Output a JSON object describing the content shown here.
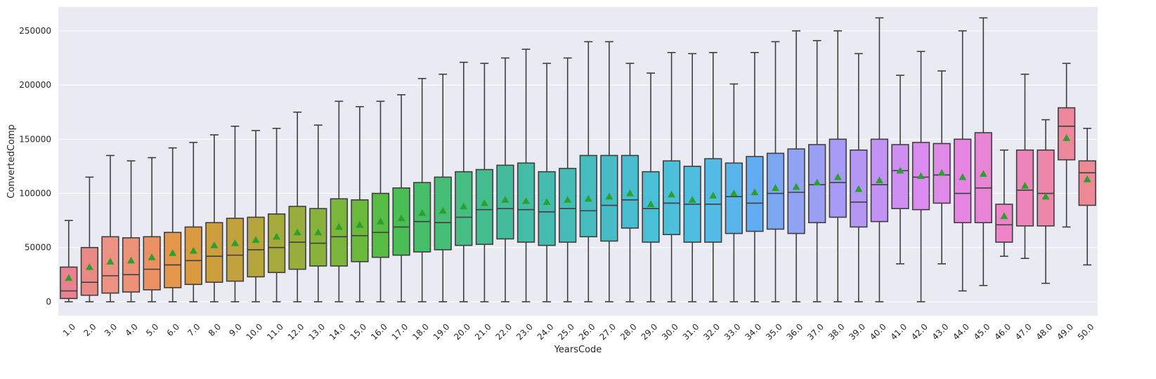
{
  "chart_data": {
    "type": "box",
    "xlabel": "YearsCode",
    "ylabel": "ConvertedComp",
    "ylim": [
      -13000,
      272000
    ],
    "yticks": [
      0,
      50000,
      100000,
      150000,
      200000,
      250000
    ],
    "ytick_labels": [
      "0",
      "50000",
      "100000",
      "150000",
      "200000",
      "250000"
    ],
    "grid": true,
    "background": "#eaeaf2",
    "box_edge_color": "#3f3f3f",
    "mean_marker_color": "#2ca02c",
    "categories": [
      "1.0",
      "2.0",
      "3.0",
      "4.0",
      "5.0",
      "6.0",
      "7.0",
      "8.0",
      "9.0",
      "10.0",
      "11.0",
      "12.0",
      "13.0",
      "14.0",
      "15.0",
      "16.0",
      "17.0",
      "18.0",
      "19.0",
      "20.0",
      "21.0",
      "22.0",
      "23.0",
      "24.0",
      "25.0",
      "26.0",
      "27.0",
      "28.0",
      "29.0",
      "30.0",
      "31.0",
      "32.0",
      "33.0",
      "34.0",
      "35.0",
      "36.0",
      "37.0",
      "38.0",
      "39.0",
      "40.0",
      "41.0",
      "42.0",
      "43.0",
      "44.0",
      "45.0",
      "46.0",
      "47.0",
      "48.0",
      "49.0",
      "50.0"
    ],
    "colors": [
      "#e8828e",
      "#ea8a86",
      "#ec9184",
      "#ed9179",
      "#ec9163",
      "#e4964b",
      "#dc9a40",
      "#cd9e3e",
      "#c2a23e",
      "#b4a63d",
      "#a6aa3d",
      "#97ae3c",
      "#88b23c",
      "#79b63b",
      "#6bb93c",
      "#58bb44",
      "#4bbd55",
      "#46bd69",
      "#46be78",
      "#46bd83",
      "#45bc90",
      "#44bb9b",
      "#45bca5",
      "#45bbaf",
      "#45bcb7",
      "#47bcbf",
      "#47bbc6",
      "#49bcd0",
      "#4ac0d5",
      "#4cbfdb",
      "#4dbee0",
      "#52bbe6",
      "#5ab4ec",
      "#62adf1",
      "#7ba6f2",
      "#90a2f4",
      "#9b9ff4",
      "#a79af4",
      "#b497f3",
      "#c192f3",
      "#cf8ef2",
      "#d98cee",
      "#e189e9",
      "#e685e2",
      "#e983d6",
      "#ec84c7",
      "#ec85b9",
      "#ec86ab",
      "#ec879c",
      "#ec8994"
    ],
    "stats": [
      {
        "min": 0,
        "q1": 3000,
        "median": 10000,
        "q3": 32000,
        "max": 75000,
        "mean": 22000
      },
      {
        "min": 0,
        "q1": 6000,
        "median": 18000,
        "q3": 50000,
        "max": 115000,
        "mean": 32000
      },
      {
        "min": 0,
        "q1": 8000,
        "median": 24000,
        "q3": 60000,
        "max": 135000,
        "mean": 37000
      },
      {
        "min": 0,
        "q1": 9000,
        "median": 25000,
        "q3": 59000,
        "max": 130000,
        "mean": 38000
      },
      {
        "min": 0,
        "q1": 11000,
        "median": 30000,
        "q3": 60000,
        "max": 133000,
        "mean": 41000
      },
      {
        "min": 0,
        "q1": 13000,
        "median": 34000,
        "q3": 64000,
        "max": 142000,
        "mean": 45000
      },
      {
        "min": 0,
        "q1": 16000,
        "median": 38000,
        "q3": 69000,
        "max": 147000,
        "mean": 47000
      },
      {
        "min": 0,
        "q1": 18000,
        "median": 42000,
        "q3": 73000,
        "max": 154000,
        "mean": 52000
      },
      {
        "min": 0,
        "q1": 19000,
        "median": 43000,
        "q3": 77000,
        "max": 162000,
        "mean": 54000
      },
      {
        "min": 0,
        "q1": 23000,
        "median": 48000,
        "q3": 78000,
        "max": 158000,
        "mean": 57000
      },
      {
        "min": 0,
        "q1": 27000,
        "median": 50000,
        "q3": 81000,
        "max": 160000,
        "mean": 60000
      },
      {
        "min": 0,
        "q1": 30000,
        "median": 55000,
        "q3": 88000,
        "max": 175000,
        "mean": 64000
      },
      {
        "min": 0,
        "q1": 33000,
        "median": 54000,
        "q3": 86000,
        "max": 163000,
        "mean": 64000
      },
      {
        "min": 0,
        "q1": 33000,
        "median": 60000,
        "q3": 95000,
        "max": 185000,
        "mean": 69000
      },
      {
        "min": 0,
        "q1": 37000,
        "median": 61000,
        "q3": 94000,
        "max": 180000,
        "mean": 71000
      },
      {
        "min": 0,
        "q1": 41000,
        "median": 64000,
        "q3": 100000,
        "max": 185000,
        "mean": 74000
      },
      {
        "min": 0,
        "q1": 43000,
        "median": 69000,
        "q3": 105000,
        "max": 191000,
        "mean": 77000
      },
      {
        "min": 0,
        "q1": 46000,
        "median": 74000,
        "q3": 110000,
        "max": 206000,
        "mean": 82000
      },
      {
        "min": 0,
        "q1": 48000,
        "median": 73000,
        "q3": 115000,
        "max": 210000,
        "mean": 84000
      },
      {
        "min": 0,
        "q1": 52000,
        "median": 78000,
        "q3": 120000,
        "max": 221000,
        "mean": 88000
      },
      {
        "min": 0,
        "q1": 53000,
        "median": 85000,
        "q3": 122000,
        "max": 220000,
        "mean": 91000
      },
      {
        "min": 0,
        "q1": 58000,
        "median": 86000,
        "q3": 126000,
        "max": 225000,
        "mean": 94000
      },
      {
        "min": 0,
        "q1": 55000,
        "median": 85000,
        "q3": 128000,
        "max": 233000,
        "mean": 93000
      },
      {
        "min": 0,
        "q1": 52000,
        "median": 83000,
        "q3": 120000,
        "max": 220000,
        "mean": 92000
      },
      {
        "min": 0,
        "q1": 55000,
        "median": 86000,
        "q3": 123000,
        "max": 225000,
        "mean": 94000
      },
      {
        "min": 0,
        "q1": 60000,
        "median": 84000,
        "q3": 135000,
        "max": 240000,
        "mean": 95000
      },
      {
        "min": 0,
        "q1": 56000,
        "median": 89000,
        "q3": 135000,
        "max": 240000,
        "mean": 97000
      },
      {
        "min": 0,
        "q1": 68000,
        "median": 94000,
        "q3": 135000,
        "max": 220000,
        "mean": 100000
      },
      {
        "min": 0,
        "q1": 55000,
        "median": 86000,
        "q3": 120000,
        "max": 211000,
        "mean": 90000
      },
      {
        "min": 0,
        "q1": 62000,
        "median": 91000,
        "q3": 130000,
        "max": 230000,
        "mean": 99000
      },
      {
        "min": 0,
        "q1": 55000,
        "median": 90000,
        "q3": 125000,
        "max": 229000,
        "mean": 94000
      },
      {
        "min": 0,
        "q1": 55000,
        "median": 90000,
        "q3": 132000,
        "max": 230000,
        "mean": 98000
      },
      {
        "min": 0,
        "q1": 63000,
        "median": 97000,
        "q3": 128000,
        "max": 201000,
        "mean": 100000
      },
      {
        "min": 0,
        "q1": 65000,
        "median": 91000,
        "q3": 134000,
        "max": 230000,
        "mean": 101000
      },
      {
        "min": 0,
        "q1": 67000,
        "median": 100000,
        "q3": 137000,
        "max": 240000,
        "mean": 105000
      },
      {
        "min": 0,
        "q1": 63000,
        "median": 101000,
        "q3": 141000,
        "max": 250000,
        "mean": 106000
      },
      {
        "min": 0,
        "q1": 73000,
        "median": 108000,
        "q3": 145000,
        "max": 241000,
        "mean": 110000
      },
      {
        "min": 0,
        "q1": 78000,
        "median": 110000,
        "q3": 150000,
        "max": 250000,
        "mean": 115000
      },
      {
        "min": 0,
        "q1": 69000,
        "median": 92000,
        "q3": 140000,
        "max": 229000,
        "mean": 104000
      },
      {
        "min": 0,
        "q1": 74000,
        "median": 108000,
        "q3": 150000,
        "max": 262000,
        "mean": 112000
      },
      {
        "min": 35000,
        "q1": 86000,
        "median": 121000,
        "q3": 145000,
        "max": 209000,
        "mean": 121000
      },
      {
        "min": 0,
        "q1": 85000,
        "median": 115000,
        "q3": 147000,
        "max": 231000,
        "mean": 116000
      },
      {
        "min": 35000,
        "q1": 91000,
        "median": 117000,
        "q3": 146000,
        "max": 213000,
        "mean": 119000
      },
      {
        "min": 10000,
        "q1": 73000,
        "median": 100000,
        "q3": 150000,
        "max": 250000,
        "mean": 115000
      },
      {
        "min": 15000,
        "q1": 73000,
        "median": 105000,
        "q3": 156000,
        "max": 262000,
        "mean": 118000
      },
      {
        "min": 42000,
        "q1": 55000,
        "median": 71000,
        "q3": 90000,
        "max": 140000,
        "mean": 79000
      },
      {
        "min": 40000,
        "q1": 70000,
        "median": 103000,
        "q3": 140000,
        "max": 210000,
        "mean": 107000
      },
      {
        "min": 17000,
        "q1": 70000,
        "median": 100000,
        "q3": 140000,
        "max": 168000,
        "mean": 97000
      },
      {
        "min": 69000,
        "q1": 131000,
        "median": 162000,
        "q3": 179000,
        "max": 220000,
        "mean": 151000
      },
      {
        "min": 34000,
        "q1": 89000,
        "median": 119000,
        "q3": 130000,
        "max": 160000,
        "mean": 113000
      }
    ]
  }
}
